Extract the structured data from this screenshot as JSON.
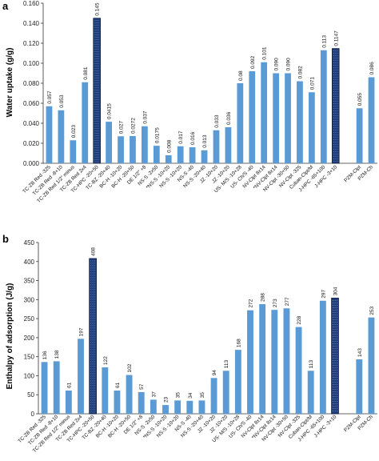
{
  "chart_data": [
    {
      "panel": "a",
      "type": "bar",
      "ylabel": "Water uptake (g/g)",
      "ylim": [
        0,
        0.16
      ],
      "yticks": [
        "0.000",
        "0.020",
        "0.040",
        "0.060",
        "0.080",
        "0.100",
        "0.120",
        "0.140",
        "0.160"
      ],
      "grid": false,
      "categories": [
        "TC-ZB Red -325",
        "TC-ZB Red -8+10",
        "TC-ZB Red 1/2\" minus",
        "TC-ZB Red 2x4",
        "TC-HPC -20+50",
        "TC-BZ -20+40",
        "BC-H -10+20",
        "BC-H -20+50",
        "DE 1/2\" +8",
        "NS-S -2x50",
        "*NS-S -10+20",
        "NS-S -10+20",
        "NS-S -40",
        "NS-S -20+40",
        "JZ -10+20",
        "JZ -10+20",
        "US- M/S -10+28",
        "US- Ch/S -40",
        "NV-Clpt 8x14",
        "*NV-Clpt 8x14",
        "NV-Clpt -30+50",
        "NV-Clpt -325",
        "Cuban-Clpt/M",
        "J-HPC -65+100",
        "J-HPC -3+10",
        "",
        "PZM-Clpt",
        "PZM-Ch"
      ],
      "values": [
        0.057,
        0.053,
        0.023,
        0.081,
        0.145,
        0.0415,
        0.027,
        0.0272,
        0.037,
        0.0175,
        0.008,
        0.017,
        0.016,
        0.013,
        0.033,
        0.036,
        0.08,
        0.092,
        0.101,
        0.09,
        0.09,
        0.082,
        0.071,
        0.113,
        0.1147,
        null,
        0.055,
        0.086
      ],
      "value_labels": [
        "0.057",
        "0.053",
        "0.023",
        "0.081",
        "0.145",
        "0.0415",
        "0.027",
        "0.0272",
        "0.037",
        "0.0175",
        "0.008",
        "0.017",
        "0.016",
        "0.013",
        "0.033",
        "0.036",
        "0.08",
        "0.092",
        "0.101",
        "0.090",
        "0.090",
        "0.082",
        "0.071",
        "0.113",
        "0.1147",
        "",
        "0.055",
        "0.086"
      ],
      "highlight_indices": [
        4,
        24
      ],
      "bar_color": "#5b9bd5",
      "highlight_color": "#1f3d7a"
    },
    {
      "panel": "b",
      "type": "bar",
      "ylabel": "Enthalpy of adsorption (J/g)",
      "ylim": [
        0,
        450
      ],
      "yticks": [
        "0",
        "50",
        "100",
        "150",
        "200",
        "250",
        "300",
        "350",
        "400",
        "450"
      ],
      "grid": false,
      "categories": [
        "TC-ZB Red -325",
        "TC-ZB Red -8+10",
        "TC-ZB Red 1/2\" minus",
        "TC-ZB Red 2x4",
        "TC-HPC -20+50",
        "TC-BZ -20+40",
        "BC-H -10+20",
        "BC-H -20+50",
        "DE 1/2\" +8",
        "NS-S -2x50",
        "*NS-S -10+20",
        "NS-S -10+20",
        "NS-S -40",
        "NS-S -20+40",
        "JZ -10+20",
        "JZ -10+20",
        "US- M/S -10+28",
        "US- Ch/S -40",
        "NV-Clpt 8x14",
        "*NV-Clpt 8x14",
        "NV-Clpt -30+50",
        "NV-Clpt -325",
        "Cuban-Clpt/M",
        "J-HPC -65+100",
        "J-HPC -3+10",
        "",
        "PZM-Clpt",
        "PZM-Ch"
      ],
      "values": [
        136,
        138,
        61,
        197,
        408,
        122,
        61,
        102,
        57,
        37,
        23,
        35,
        34,
        35,
        94,
        113,
        168,
        272,
        288,
        273,
        277,
        228,
        113,
        297,
        304,
        null,
        143,
        253
      ],
      "value_labels": [
        "136",
        "138",
        "61",
        "197",
        "408",
        "122",
        "61",
        "102",
        "57",
        "37",
        "23",
        "35",
        "34",
        "35",
        "94",
        "113",
        "168",
        "272",
        "288",
        "273",
        "277",
        "228",
        "113",
        "297",
        "304",
        "",
        "143",
        "253"
      ],
      "highlight_indices": [
        4,
        24
      ],
      "bar_color": "#5b9bd5",
      "highlight_color": "#1f3d7a"
    }
  ]
}
